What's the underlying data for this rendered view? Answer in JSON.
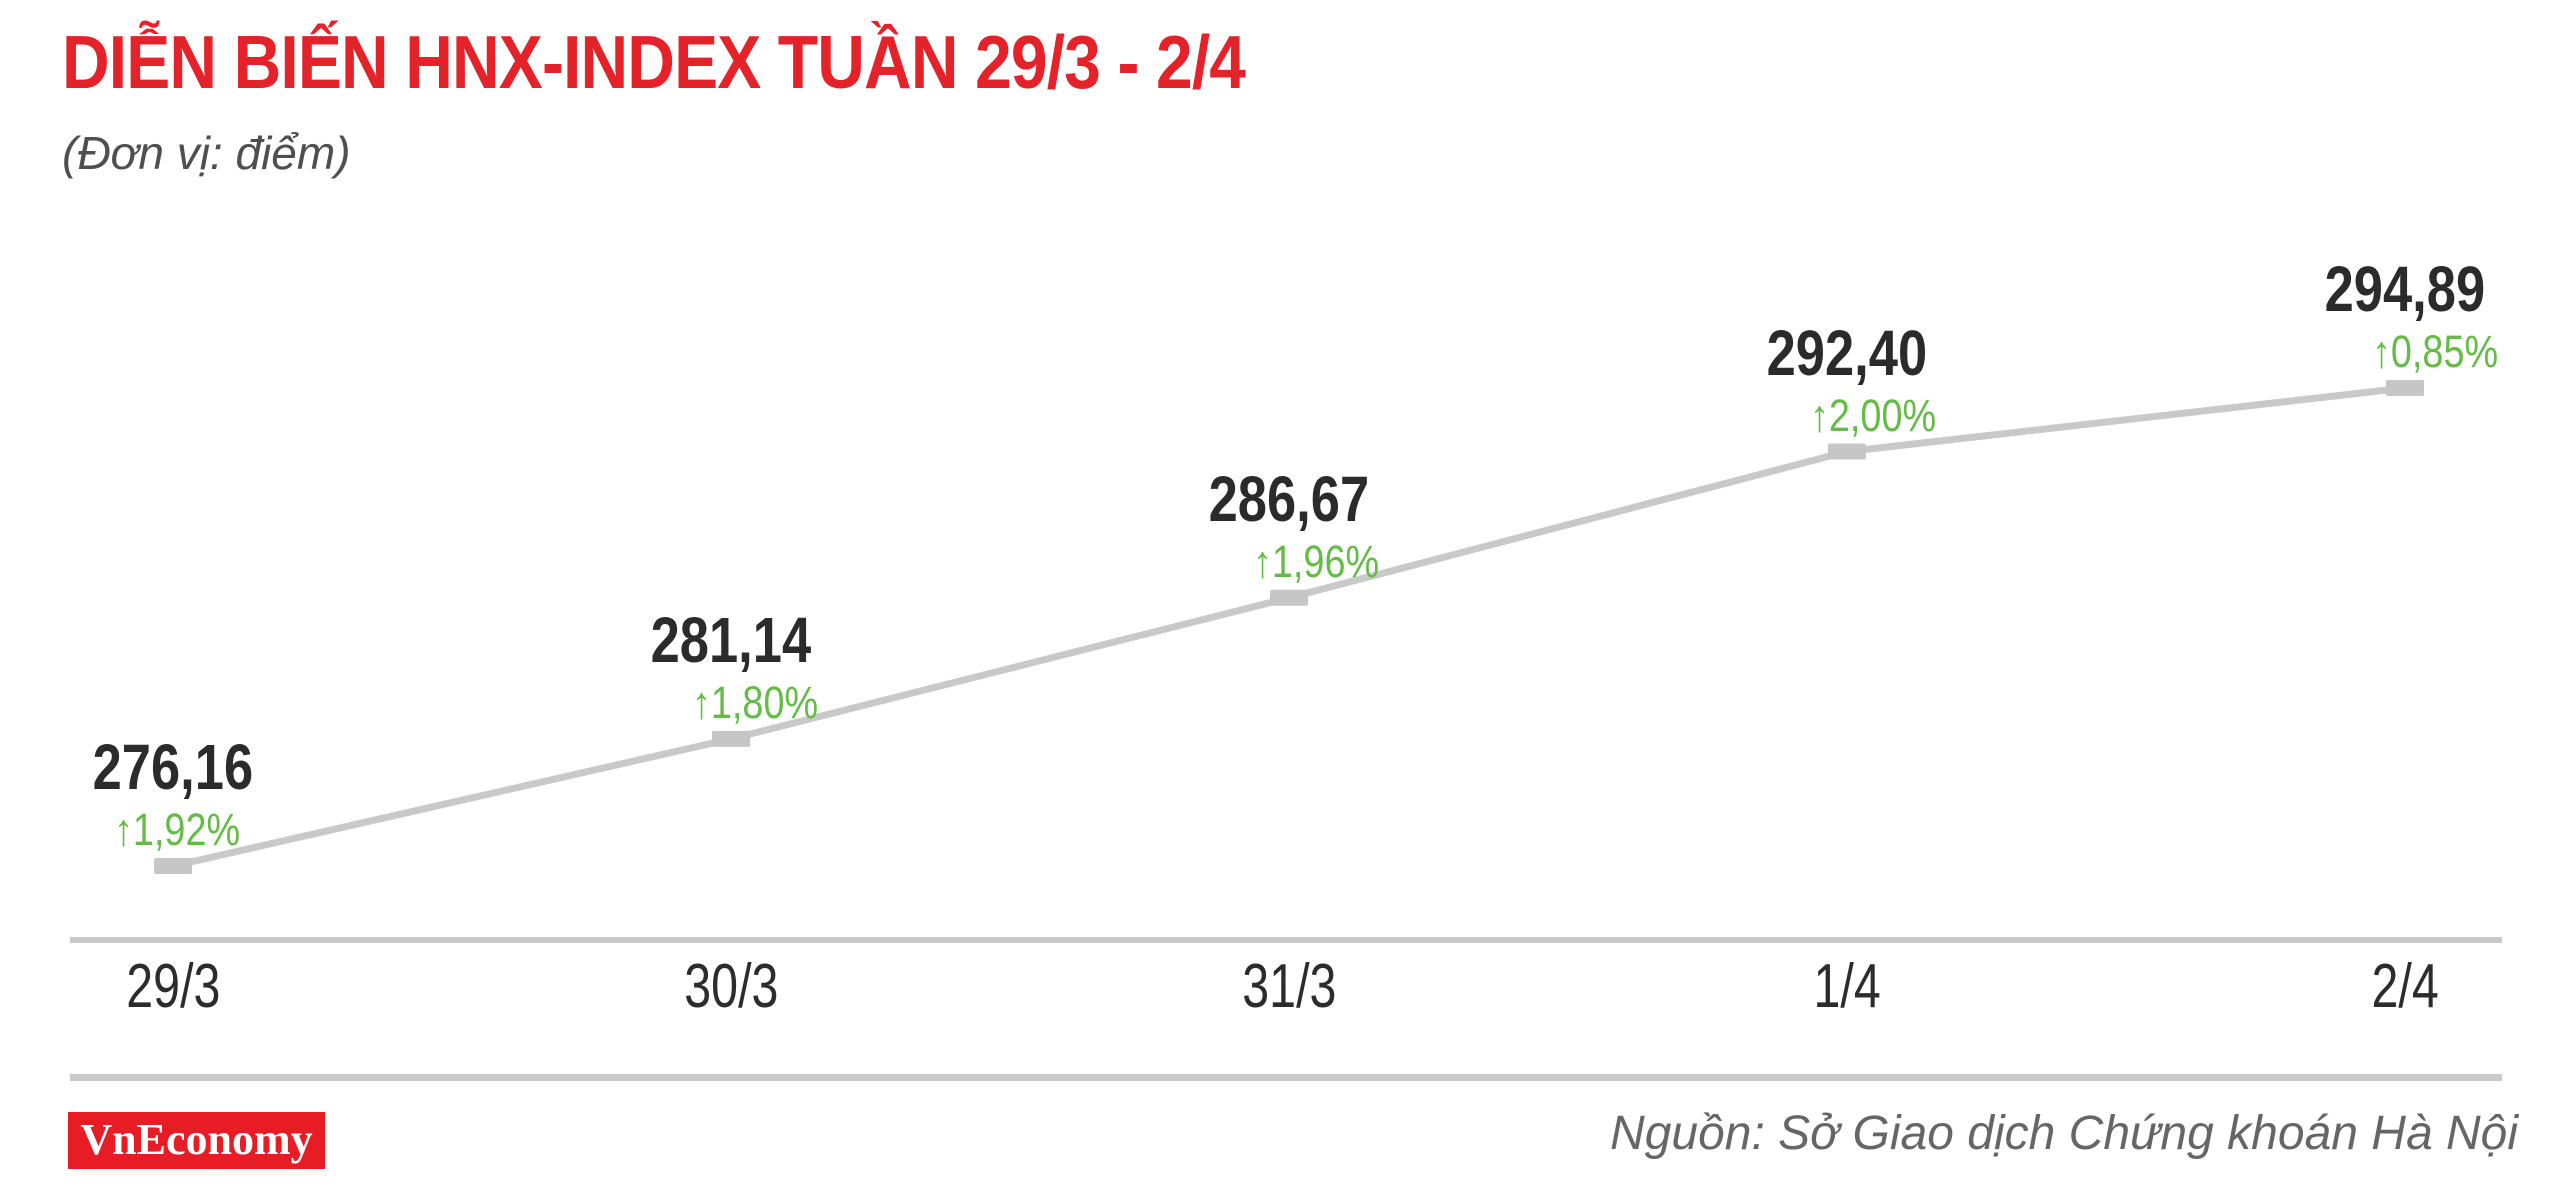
{
  "header": {
    "title": "DIỄN BIẾN HNX-INDEX TUẦN 29/3 - 2/4",
    "subtitle": "(Đơn vị: điểm)"
  },
  "footer": {
    "logo_text": "VnEconomy",
    "source": "Nguồn: Sở Giao dịch Chứng khoán Hà Nội"
  },
  "colors": {
    "title_red": "#e3222a",
    "logo_red": "#e81c25",
    "change_green": "#64bb46",
    "line_gray": "#c9c9c9",
    "marker_gray": "#c6c6c6",
    "value_dark": "#2b2b2b",
    "subtitle_gray": "#4f4f4f",
    "source_gray": "#666666"
  },
  "chart_data": {
    "type": "line",
    "title": "DIỄN BIẾN HNX-INDEX TUẦN 29/3 - 2/4",
    "unit_label": "(Đơn vị: điểm)",
    "categories": [
      "29/3",
      "30/3",
      "31/3",
      "1/4",
      "2/4"
    ],
    "values": [
      276.16,
      281.14,
      286.67,
      292.4,
      294.89
    ],
    "value_labels": [
      "276,16",
      "281,14",
      "286,67",
      "292,40",
      "294,89"
    ],
    "changes_pct": [
      1.92,
      1.8,
      1.96,
      2.0,
      0.85
    ],
    "change_labels": [
      "1,92%",
      "1,80%",
      "1,96%",
      "2,00%",
      "0,85%"
    ],
    "arrow_glyph": "↑",
    "line_color": "#c9c9c9",
    "marker": "square",
    "grid": false,
    "legend": false,
    "xlabel": "",
    "ylabel": "điểm",
    "ylim_hint": [
      274,
      296
    ],
    "source": "Nguồn: Sở Giao dịch Chứng khoán Hà Nội"
  }
}
